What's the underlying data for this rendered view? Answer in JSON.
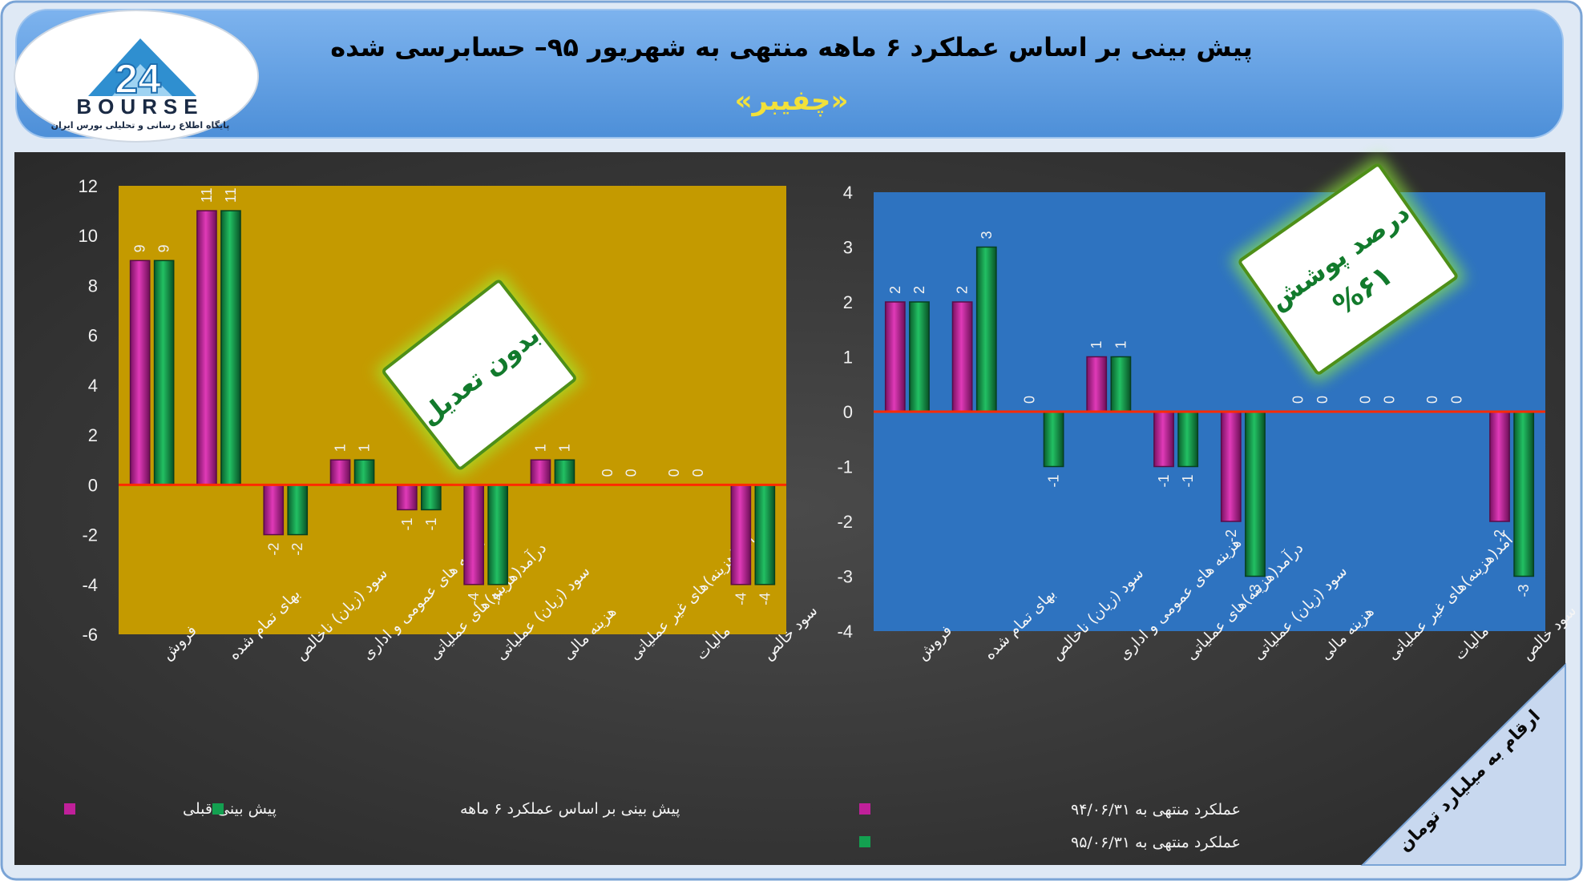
{
  "header": {
    "title": "پیش بینی بر اساس عملکرد ۶ ماهه منتهی به شهریور ۹۵– حسابرسی شده",
    "company": "«چفیبر»"
  },
  "logo": {
    "brand": "BOURSE",
    "number": "24",
    "tagline": "پایگاه اطلاع رسانی و تحلیلی بورس ایران"
  },
  "badges": {
    "left": "بدون تعدیل",
    "right_line1": "درصد پوشش",
    "right_line2": "%۶۱"
  },
  "units_banner": "ارقام به میلیارد تومان",
  "colors": {
    "series_a": "#c0209a",
    "series_b": "#13a050",
    "left_bg": "#c49a00",
    "right_bg": "#2e73c0",
    "zero_line": "#ff2a00",
    "panel_bg": "#3a3a3a",
    "header_bg": "#5f9de0"
  },
  "chart_data": [
    {
      "type": "bar",
      "categories": [
        "فروش",
        "بهای تمام شده",
        "سود (زیان) ناخالص",
        "هزینه های عمومی و اداری",
        "درآمد(هزینه)های عملیاتی",
        "سود (زیان) عملیاتی",
        "هزینه مالی",
        "درآمد(هزینه)های غیر عملیاتی",
        "مالیات",
        "سود خالص"
      ],
      "series": [
        {
          "name": "پیش بینی قبلی",
          "values": [
            9,
            11,
            -2,
            1,
            -1,
            -4,
            1,
            0,
            0,
            -4
          ]
        },
        {
          "name": "پیش بینی بر اساس عملکرد ۶ ماهه",
          "values": [
            9,
            11,
            -2,
            1,
            -1,
            -4,
            1,
            0,
            0,
            -4
          ]
        }
      ],
      "ylim": [
        -6,
        12
      ],
      "yticks": [
        12,
        10,
        8,
        6,
        4,
        2,
        0,
        -2,
        -4,
        -6
      ],
      "grid": false,
      "legend": "bottom"
    },
    {
      "type": "bar",
      "categories": [
        "فروش",
        "بهای تمام شده",
        "سود (زیان) ناخالص",
        "هزینه های عمومی و اداری",
        "درآمد(هزینه)های عملیاتی",
        "سود (زیان) عملیاتی",
        "هزینه مالی",
        "درآمد(هزینه)های غیر عملیاتی",
        "مالیات",
        "سود خالص"
      ],
      "series": [
        {
          "name": "عملکرد منتهی به ۹۴/۰۶/۳۱",
          "values": [
            2,
            2,
            0,
            1,
            -1,
            -2,
            0,
            0,
            0,
            -2
          ]
        },
        {
          "name": "عملکرد منتهی به ۹۵/۰۶/۳۱",
          "values": [
            2,
            3,
            -1,
            1,
            -1,
            -3,
            0,
            0,
            0,
            -3
          ]
        }
      ],
      "ylim": [
        -4,
        4
      ],
      "yticks": [
        4,
        3,
        2,
        1,
        0,
        -1,
        -2,
        -3,
        -4
      ],
      "grid": false,
      "legend": "bottom"
    }
  ]
}
